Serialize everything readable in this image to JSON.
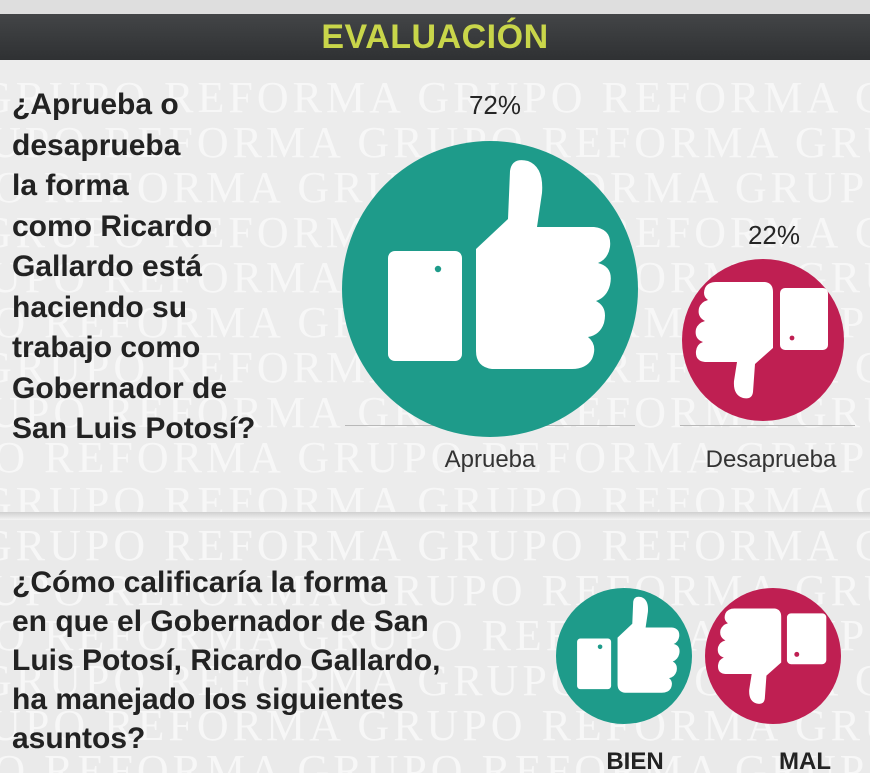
{
  "header": {
    "title": "EVALUACIÓN"
  },
  "watermark": {
    "text": "GRUPO REFORMA"
  },
  "question_1": {
    "lines": [
      "¿Aprueba o",
      "desaprueba",
      "la forma",
      "como Ricardo",
      "Gallardo está",
      "haciendo su",
      "trabajo como",
      "Gobernador de",
      "San Luis Potosí?"
    ]
  },
  "question_2": {
    "lines": [
      "¿Cómo calificaría la forma",
      "en que el Gobernador de San",
      "Luis Potosí, Ricardo Gallardo,",
      "ha manejado los siguientes",
      "asuntos?"
    ]
  },
  "legend": {
    "bien": "BIEN",
    "mal": "MAL"
  },
  "colors": {
    "approve": "#1e9b8a",
    "disapprove": "#bf1f52",
    "header_text": "#c9d64a",
    "header_bg": "#3a3c3e"
  },
  "icons": {
    "approve": "thumbs-up-icon",
    "disapprove": "thumbs-down-icon"
  },
  "chart_data": {
    "type": "bubble",
    "title": "",
    "categories": [
      "Aprueba",
      "Desaprueba"
    ],
    "values": [
      72,
      22
    ],
    "value_labels": [
      "72%",
      "22%"
    ],
    "unit": "%"
  }
}
